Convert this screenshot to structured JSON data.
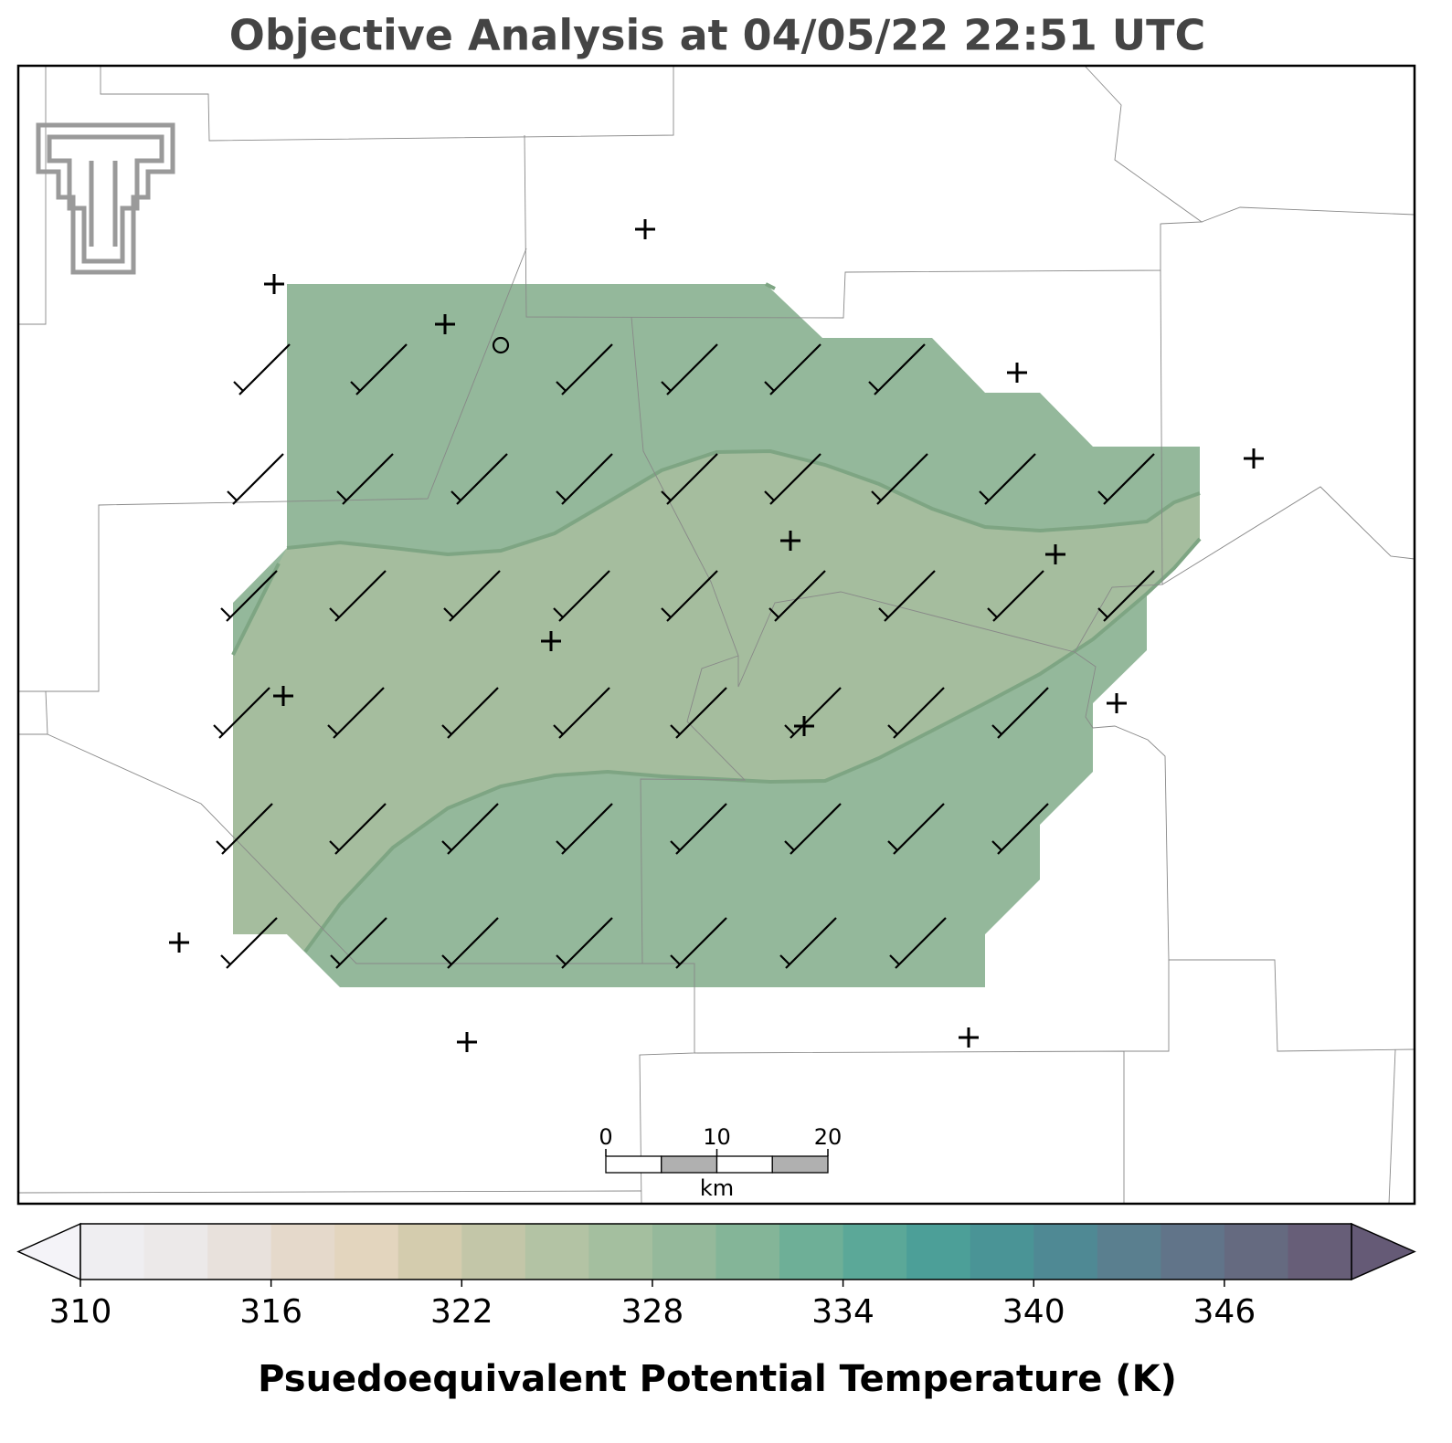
{
  "title": "Objective Analysis at 04/05/22 22:51 UTC",
  "scale_bar": {
    "ticks": [
      0,
      10,
      20
    ],
    "unit": "km"
  },
  "colorbar": {
    "label": "Psuedoequivalent Potential Temperature (K)",
    "range": [
      310,
      350
    ],
    "ticks": [
      310,
      316,
      322,
      328,
      334,
      340,
      346
    ],
    "colors": [
      "#efeef1",
      "#ece9e9",
      "#e8e1dc",
      "#e5d9cb",
      "#e3d5be",
      "#d4ccae",
      "#c3c6a8",
      "#b3c3a4",
      "#a4bf9f",
      "#95b99b",
      "#84b598",
      "#6eaf97",
      "#5ba898",
      "#4c9f98",
      "#4a9496",
      "#4f8994",
      "#5a7f8f",
      "#617489",
      "#656a80",
      "#675e78"
    ],
    "extend_colors": [
      "#f4f3f8",
      "#655a76"
    ]
  }
}
